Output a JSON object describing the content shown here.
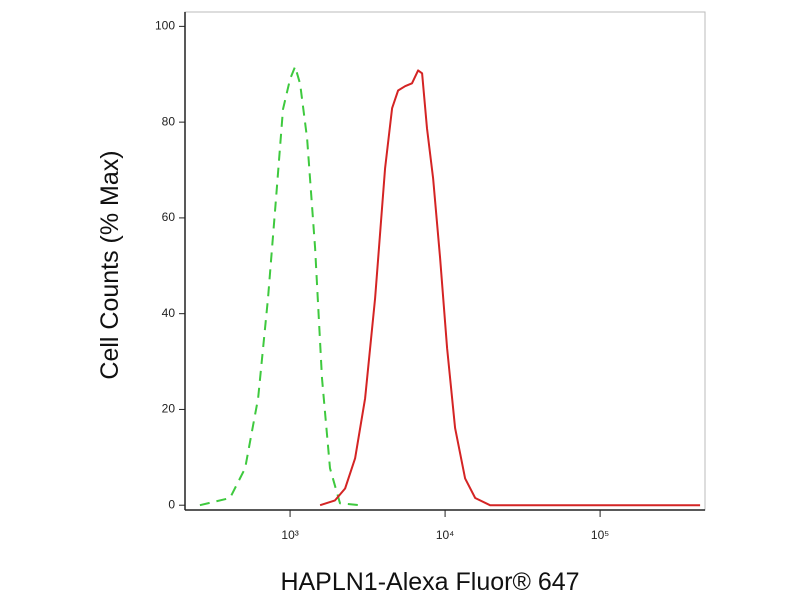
{
  "chart_data": {
    "type": "line",
    "xlabel": "HAPLN1-Alexa Fluor® 647",
    "ylabel": "Cell Counts (% Max)",
    "xscale": "log",
    "xlim": [
      210,
      475000
    ],
    "ylim": [
      -1,
      103
    ],
    "xticks": [
      {
        "value": 1000,
        "label": "10³"
      },
      {
        "value": 10000,
        "label": "10⁴"
      },
      {
        "value": 100000,
        "label": "10⁵"
      }
    ],
    "yticks": [
      0,
      20,
      40,
      60,
      80,
      100
    ],
    "series": [
      {
        "color": "#3ec93e",
        "dashed": true,
        "x": [
          262,
          410,
          513,
          622,
          721,
          812,
          901,
          1000,
          1077,
          1160,
          1287,
          1450,
          1607,
          1811,
          2100,
          2830
        ],
        "values": [
          0,
          1.5,
          7.7,
          22.3,
          43.2,
          64,
          82.7,
          89,
          91.6,
          88,
          76.6,
          53.7,
          26.5,
          7.7,
          0.4,
          0
        ]
      },
      {
        "color": "#d42424",
        "dashed": false,
        "x": [
          1562,
          1950,
          2264,
          2627,
          3048,
          3534,
          4100,
          4550,
          4975,
          5520,
          6120,
          6700,
          7110,
          7650,
          8370,
          9290,
          10300,
          11610,
          13460,
          15630,
          19500,
          441600
        ],
        "values": [
          0,
          1,
          3.5,
          9.8,
          22.3,
          43.2,
          70.4,
          82.9,
          86.6,
          87.5,
          88.1,
          90.8,
          90.2,
          78.7,
          68.3,
          51.6,
          32.8,
          16.1,
          5.6,
          1.5,
          0,
          0
        ]
      }
    ]
  }
}
